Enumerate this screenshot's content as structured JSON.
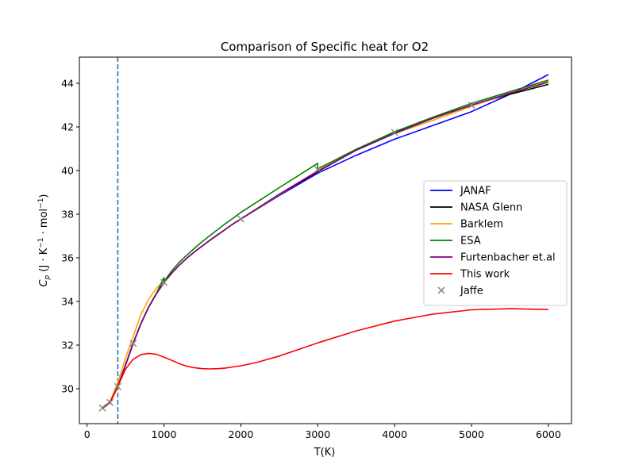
{
  "chart_data": {
    "type": "line",
    "title": "Comparison of Specific heat for O2",
    "xlabel": "T(K)",
    "ylabel_main": "C",
    "ylabel_sub": "p",
    "ylabel_rest": " (J · K",
    "ylabel_sup1": "−1",
    "ylabel_mid": " · mol",
    "ylabel_sup2": "−1",
    "ylabel_end": ")",
    "xlim": [
      -100,
      6300
    ],
    "ylim": [
      28.4,
      45.2
    ],
    "xticks": [
      0,
      1000,
      2000,
      3000,
      4000,
      5000,
      6000
    ],
    "yticks": [
      30,
      32,
      34,
      36,
      38,
      40,
      42,
      44
    ],
    "vline_x": 400,
    "vline_color": "#1f77b4",
    "legend_position": "center-right",
    "series": [
      {
        "name": "JANAF",
        "color": "#0000ff",
        "x": [
          200,
          298,
          400,
          500,
          600,
          700,
          800,
          900,
          1000,
          1100,
          1200,
          1300,
          1400,
          1500,
          1600,
          1700,
          1800,
          1900,
          2000,
          2500,
          3000,
          3500,
          4000,
          4500,
          5000,
          5500,
          6000
        ],
        "y": [
          29.13,
          29.38,
          30.11,
          31.09,
          32.09,
          32.98,
          33.74,
          34.36,
          34.87,
          35.3,
          35.67,
          35.99,
          36.28,
          36.55,
          36.81,
          37.06,
          37.31,
          37.56,
          37.78,
          38.86,
          39.88,
          40.7,
          41.44,
          42.07,
          42.7,
          43.5,
          44.4
        ]
      },
      {
        "name": "NASA Glenn",
        "color": "#000000",
        "x": [
          200,
          298,
          400,
          500,
          600,
          700,
          800,
          900,
          1000,
          1100,
          1200,
          1300,
          1400,
          1500,
          1600,
          1700,
          1800,
          1900,
          2000,
          2500,
          3000,
          3500,
          4000,
          4500,
          5000,
          5500,
          6000
        ],
        "y": [
          29.12,
          29.37,
          30.1,
          31.08,
          32.08,
          32.98,
          33.73,
          34.35,
          34.87,
          35.3,
          35.67,
          35.99,
          36.28,
          36.55,
          36.81,
          37.06,
          37.31,
          37.56,
          37.78,
          38.9,
          39.95,
          40.95,
          41.75,
          42.4,
          43.0,
          43.5,
          43.95
        ]
      },
      {
        "name": "Barklem",
        "color": "#ffa500",
        "x": [
          200,
          298,
          400,
          500,
          600,
          700,
          800,
          900,
          1000,
          1100,
          1200,
          1300,
          1400,
          1500,
          1600,
          1700,
          1800,
          1900,
          2000,
          2500,
          3000,
          3500,
          4000,
          4500,
          5000,
          5500,
          6000
        ],
        "y": [
          29.1,
          29.4,
          30.3,
          31.4,
          32.4,
          33.4,
          34.1,
          34.6,
          34.95,
          35.32,
          35.67,
          35.99,
          36.28,
          36.55,
          36.81,
          37.06,
          37.31,
          37.56,
          37.78,
          38.9,
          40.0,
          40.95,
          41.7,
          42.3,
          42.95,
          43.55,
          44.1
        ]
      },
      {
        "name": "ESA",
        "color": "#008000",
        "x": [
          200,
          298,
          400,
          500,
          600,
          700,
          800,
          900,
          999,
          1001,
          1100,
          1200,
          1300,
          1400,
          1500,
          1600,
          1700,
          1800,
          1900,
          2000,
          2500,
          2999,
          3001,
          3500,
          4000,
          4500,
          5000,
          5500,
          6000
        ],
        "y": [
          29.13,
          29.38,
          30.11,
          31.09,
          32.09,
          32.98,
          33.74,
          34.36,
          35.1,
          34.92,
          35.4,
          35.8,
          36.13,
          36.45,
          36.75,
          37.03,
          37.3,
          37.57,
          37.82,
          38.08,
          39.22,
          40.33,
          40.08,
          40.98,
          41.78,
          42.45,
          43.08,
          43.62,
          44.15
        ]
      },
      {
        "name": "Furtenbacher et.al",
        "color": "#800080",
        "x": [
          200,
          298,
          400,
          500,
          600,
          700,
          800,
          900,
          1000,
          1100,
          1200,
          1300,
          1400,
          1500,
          1600,
          1700,
          1800,
          1900,
          2000,
          2500,
          3000,
          3500,
          4000,
          4500,
          5000,
          5500,
          6000
        ],
        "y": [
          29.12,
          29.37,
          30.1,
          31.08,
          32.08,
          32.98,
          33.73,
          34.35,
          34.87,
          35.3,
          35.67,
          35.99,
          36.28,
          36.55,
          36.81,
          37.06,
          37.31,
          37.56,
          37.78,
          38.92,
          39.97,
          40.93,
          41.7,
          42.4,
          43.0,
          43.55,
          44.05
        ]
      },
      {
        "name": "This work",
        "color": "#ff0000",
        "x": [
          200,
          298,
          400,
          500,
          600,
          700,
          800,
          900,
          1000,
          1100,
          1200,
          1300,
          1400,
          1500,
          1600,
          1700,
          1800,
          1900,
          2000,
          2200,
          2500,
          3000,
          3500,
          4000,
          4500,
          5000,
          5500,
          6000
        ],
        "y": [
          29.1,
          29.35,
          30.1,
          30.9,
          31.35,
          31.56,
          31.62,
          31.58,
          31.45,
          31.3,
          31.15,
          31.03,
          30.96,
          30.92,
          30.91,
          30.92,
          30.95,
          31.0,
          31.05,
          31.2,
          31.5,
          32.1,
          32.65,
          33.1,
          33.42,
          33.62,
          33.67,
          33.63
        ]
      }
    ],
    "scatter": {
      "name": "Jaffe",
      "color": "#808080",
      "x": [
        200,
        298,
        400,
        600,
        1000,
        2000,
        3000,
        4000,
        5000
      ],
      "y": [
        29.12,
        29.37,
        30.1,
        32.08,
        34.87,
        37.78,
        40.05,
        41.75,
        43.0
      ]
    }
  }
}
